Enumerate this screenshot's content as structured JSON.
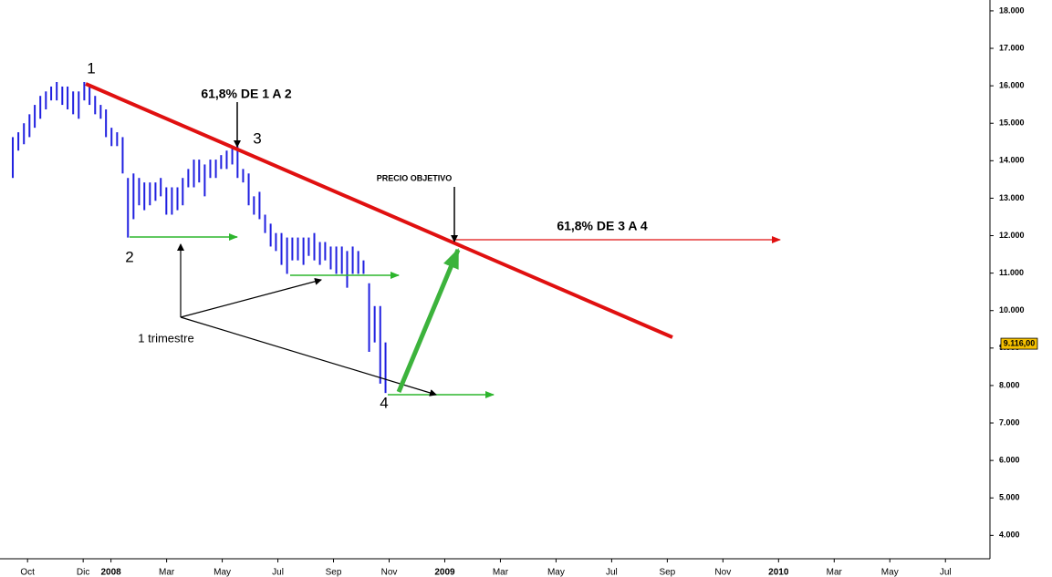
{
  "chart_data": {
    "type": "ohlc",
    "color": "#1f1fe0",
    "xlim": [
      -0.99,
      34.6
    ],
    "ylim": [
      3400,
      18290
    ],
    "xticks": [
      {
        "value": 0,
        "label": "Oct"
      },
      {
        "value": 2,
        "label": "Dic"
      },
      {
        "value": 3,
        "label": "2008"
      },
      {
        "value": 5,
        "label": "Mar"
      },
      {
        "value": 7,
        "label": "May"
      },
      {
        "value": 9,
        "label": "Jul"
      },
      {
        "value": 11,
        "label": "Sep"
      },
      {
        "value": 13,
        "label": "Nov"
      },
      {
        "value": 15,
        "label": "2009"
      },
      {
        "value": 17,
        "label": "Mar"
      },
      {
        "value": 19,
        "label": "May"
      },
      {
        "value": 21,
        "label": "Jul"
      },
      {
        "value": 23,
        "label": "Sep"
      },
      {
        "value": 25,
        "label": "Nov"
      },
      {
        "value": 27,
        "label": "2010"
      },
      {
        "value": 29,
        "label": "Mar"
      },
      {
        "value": 31,
        "label": "May"
      },
      {
        "value": 33,
        "label": "Jul"
      }
    ],
    "yticks": [
      {
        "value": 4000,
        "label": "4.000"
      },
      {
        "value": 5000,
        "label": "5.000"
      },
      {
        "value": 6000,
        "label": "6.000"
      },
      {
        "value": 7000,
        "label": "7.000"
      },
      {
        "value": 8000,
        "label": "8.000"
      },
      {
        "value": 9000,
        "label": "9.000"
      },
      {
        "value": 10000,
        "label": "10.000"
      },
      {
        "value": 11000,
        "label": "11.000"
      },
      {
        "value": 12000,
        "label": "12.000"
      },
      {
        "value": 13000,
        "label": "13.000"
      },
      {
        "value": 14000,
        "label": "14.000"
      },
      {
        "value": 15000,
        "label": "15.000"
      },
      {
        "value": 16000,
        "label": "16.000"
      },
      {
        "value": 17000,
        "label": "17.000"
      },
      {
        "value": 18000,
        "label": "18.000"
      }
    ],
    "last_price": {
      "value": 9116,
      "label": "9.116,00"
    },
    "x": [
      -0.53,
      -0.33,
      -0.13,
      0.07,
      0.26,
      0.46,
      0.66,
      0.85,
      1.05,
      1.25,
      1.44,
      1.64,
      1.84,
      2.04,
      2.23,
      2.43,
      2.63,
      2.82,
      3.02,
      3.22,
      3.42,
      3.61,
      3.81,
      4.01,
      4.2,
      4.4,
      4.6,
      4.79,
      4.99,
      5.19,
      5.39,
      5.58,
      5.78,
      5.98,
      6.17,
      6.37,
      6.57,
      6.77,
      6.96,
      7.16,
      7.36,
      7.55,
      7.75,
      7.95,
      8.14,
      8.34,
      8.54,
      8.74,
      8.93,
      9.13,
      9.33,
      9.52,
      9.72,
      9.92,
      10.11,
      10.31,
      10.51,
      10.7,
      10.9,
      11.1,
      11.3,
      11.49,
      11.69,
      11.89,
      12.08,
      12.28,
      12.48,
      12.68,
      12.87
    ],
    "high": [
      14630,
      14760,
      15000,
      15240,
      15490,
      15730,
      15850,
      15980,
      16100,
      15980,
      15980,
      15850,
      15850,
      16100,
      15980,
      15730,
      15490,
      15370,
      14880,
      14760,
      14630,
      13540,
      13660,
      13540,
      13420,
      13420,
      13420,
      13540,
      13290,
      13290,
      13290,
      13540,
      13780,
      14030,
      14030,
      13900,
      14030,
      14030,
      14150,
      14270,
      14390,
      14390,
      13780,
      13660,
      13050,
      13170,
      12560,
      12320,
      12070,
      12070,
      11950,
      11950,
      11950,
      11950,
      11950,
      12070,
      11830,
      11830,
      11710,
      11710,
      11710,
      11590,
      11710,
      11590,
      11340,
      10730,
      10120,
      10120,
      9150
    ],
    "low": [
      13540,
      14270,
      14440,
      14630,
      14880,
      15120,
      15370,
      15610,
      15610,
      15490,
      15370,
      15240,
      15120,
      15610,
      15490,
      15240,
      15120,
      14630,
      14390,
      14390,
      13660,
      11950,
      12440,
      12810,
      12680,
      12810,
      12930,
      13050,
      12560,
      12560,
      12680,
      12810,
      13290,
      13290,
      13420,
      13050,
      13540,
      13540,
      13780,
      13780,
      13900,
      13540,
      13420,
      12810,
      12560,
      12440,
      12070,
      11710,
      11590,
      11220,
      10980,
      11340,
      11340,
      11220,
      11460,
      11340,
      11220,
      11340,
      11100,
      10980,
      10980,
      10610,
      10980,
      10980,
      10980,
      8900,
      9150,
      8050,
      7800
    ],
    "annotations": [
      "1",
      "2",
      "3",
      "4",
      "61,8% DE 1 A 2",
      "PRECIO OBJETIVO",
      "61,8% DE 3 A 4",
      "1 trimestre"
    ]
  }
}
